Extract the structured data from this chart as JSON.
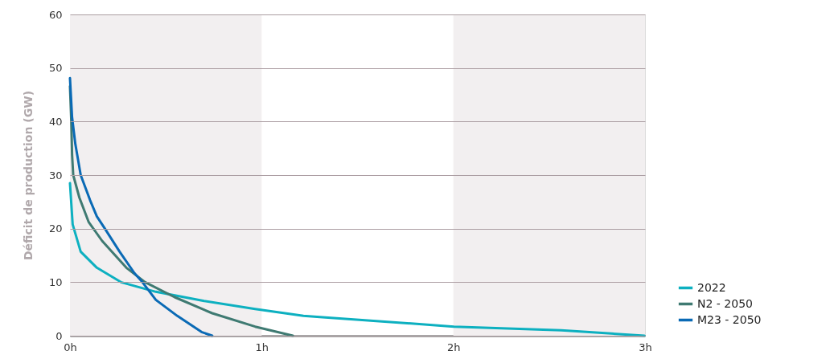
{
  "chart_data": {
    "type": "line",
    "ylabel": "Déficit de production (GW)",
    "xlim": [
      0,
      3
    ],
    "ylim": [
      0,
      60
    ],
    "xticks": [
      {
        "value": 0,
        "label": "0h"
      },
      {
        "value": 1,
        "label": "1h"
      },
      {
        "value": 2,
        "label": "2h"
      },
      {
        "value": 3,
        "label": "3h"
      }
    ],
    "yticks": [
      0,
      10,
      20,
      30,
      40,
      50,
      60
    ],
    "grid": "y",
    "legend": "bottom right",
    "line_style": "solid",
    "marker": "none",
    "bands": [
      {
        "axis": "x",
        "from": 0,
        "to": 1,
        "color": "#f2eff0"
      },
      {
        "axis": "x",
        "from": 2,
        "to": 3,
        "color": "#f2eff0"
      }
    ],
    "series": [
      {
        "name": "2022",
        "color": "#0db0c0",
        "x": [
          0,
          0.014,
          0.056,
          0.14,
          0.266,
          0.448,
          0.7,
          0.966,
          1.218,
          1.303,
          2.003,
          2.563,
          2.997
        ],
        "values": [
          28.5,
          20.8,
          15.7,
          12.7,
          10,
          8.2,
          6.5,
          5,
          3.7,
          3.5,
          1.7,
          1,
          0
        ]
      },
      {
        "name": "N2 - 2050",
        "color": "#3f7a72",
        "x": [
          0,
          0.007,
          0.011,
          0.017,
          0.049,
          0.098,
          0.168,
          0.294,
          0.392,
          0.546,
          0.742,
          0.966,
          1.163
        ],
        "values": [
          46.6,
          40,
          33.8,
          30,
          25.8,
          21.2,
          17.7,
          12.7,
          10,
          7.2,
          4.2,
          1.7,
          0
        ]
      },
      {
        "name": "M23 - 2050",
        "color": "#0a6ab5",
        "x": [
          0,
          0.011,
          0.028,
          0.056,
          0.105,
          0.14,
          0.182,
          0.259,
          0.336,
          0.378,
          0.448,
          0.56,
          0.686,
          0.742
        ],
        "values": [
          48.1,
          40.8,
          35.8,
          30,
          25.3,
          22.3,
          20,
          15.7,
          11.7,
          10,
          6.7,
          3.7,
          0.7,
          0
        ]
      }
    ]
  }
}
